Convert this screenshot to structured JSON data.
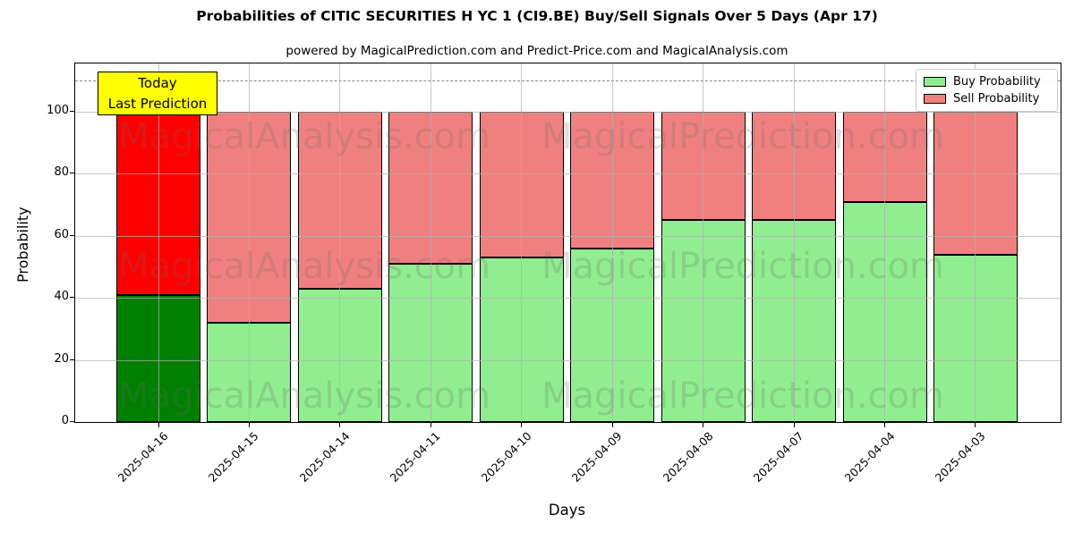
{
  "title": "Probabilities of CITIC SECURITIES H YC 1 (CI9.BE) Buy/Sell Signals Over 5 Days (Apr 17)",
  "subtitle": "powered by MagicalPrediction.com and Predict-Price.com and MagicalAnalysis.com",
  "watermark_left": "MagicalAnalysis.com",
  "watermark_right": "MagicalPrediction.com",
  "annotation": {
    "line1": "Today",
    "line2": "Last Prediction"
  },
  "legend": {
    "items": [
      {
        "label": "Buy Probability",
        "color": "#90EE90"
      },
      {
        "label": "Sell Probability",
        "color": "#F08080"
      }
    ]
  },
  "axes": {
    "xlabel": "Days",
    "ylabel": "Probability",
    "yticks": [
      0,
      20,
      40,
      60,
      80,
      100
    ],
    "ylim": [
      0,
      115.6
    ],
    "dashed_guide_y": 110,
    "grid": true
  },
  "colors": {
    "buy": "#90EE90",
    "sell": "#F08080",
    "buy_today": "#008000",
    "sell_today": "#FF0000",
    "bar_edge": "#000000",
    "grid": "#b0b0b0",
    "dashed_guide": "#888888",
    "annotation_bg": "#FFFF00",
    "legend_border": "#cccccc"
  },
  "chart_data": {
    "type": "bar",
    "stacked": true,
    "title": "Probabilities of CITIC SECURITIES H YC 1 (CI9.BE) Buy/Sell Signals Over 5 Days (Apr 17)",
    "xlabel": "Days",
    "ylabel": "Probability",
    "categories": [
      "2025-04-16",
      "2025-04-15",
      "2025-04-14",
      "2025-04-11",
      "2025-04-10",
      "2025-04-09",
      "2025-04-08",
      "2025-04-07",
      "2025-04-04",
      "2025-04-03"
    ],
    "series": [
      {
        "name": "Buy Probability",
        "values": [
          41,
          32,
          43,
          51,
          53,
          56,
          65,
          65,
          71,
          54
        ]
      },
      {
        "name": "Sell Probability",
        "values": [
          59,
          68,
          57,
          49,
          47,
          44,
          35,
          35,
          29,
          46
        ]
      }
    ],
    "highlight_index": 0,
    "highlight_label": "Today / Last Prediction",
    "ylim": [
      0,
      115.6
    ],
    "dashed_guide_y": 110,
    "legend_position": "upper right",
    "grid": true
  }
}
